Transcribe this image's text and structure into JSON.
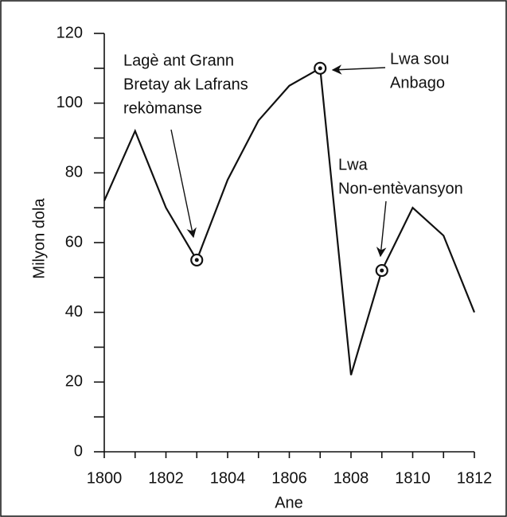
{
  "chart_data": {
    "type": "line",
    "x": [
      1800,
      1801,
      1802,
      1803,
      1804,
      1805,
      1806,
      1807,
      1808,
      1809,
      1810,
      1811,
      1812
    ],
    "series": [
      {
        "name": null,
        "color": "#111111",
        "values": [
          72,
          92,
          70,
          55,
          78,
          95,
          105,
          110,
          22,
          52,
          70,
          62,
          40
        ]
      }
    ],
    "xlim": [
      1800,
      1812
    ],
    "xticks": [
      1800,
      1802,
      1804,
      1806,
      1808,
      1810,
      1812
    ],
    "xminorticks": [
      1801,
      1803,
      1805,
      1807,
      1809,
      1811
    ],
    "ylim": [
      0,
      120
    ],
    "yticks": [
      0,
      20,
      40,
      60,
      80,
      100,
      120
    ],
    "yminorticks": [
      10,
      30,
      50,
      70,
      90,
      110
    ],
    "xlabel": "Ane",
    "ylabel": "Milyon dola",
    "annotations": [
      {
        "lines": [
          "Lagè ant Grann",
          "Bretay ak Lafrans",
          "rekòmanse"
        ],
        "x": 1803
      },
      {
        "lines": [
          "Lwa sou",
          "Anbago"
        ],
        "x": 1807
      },
      {
        "lines": [
          "Lwa",
          "Non-entèvansyon"
        ],
        "x": 1809
      }
    ]
  }
}
